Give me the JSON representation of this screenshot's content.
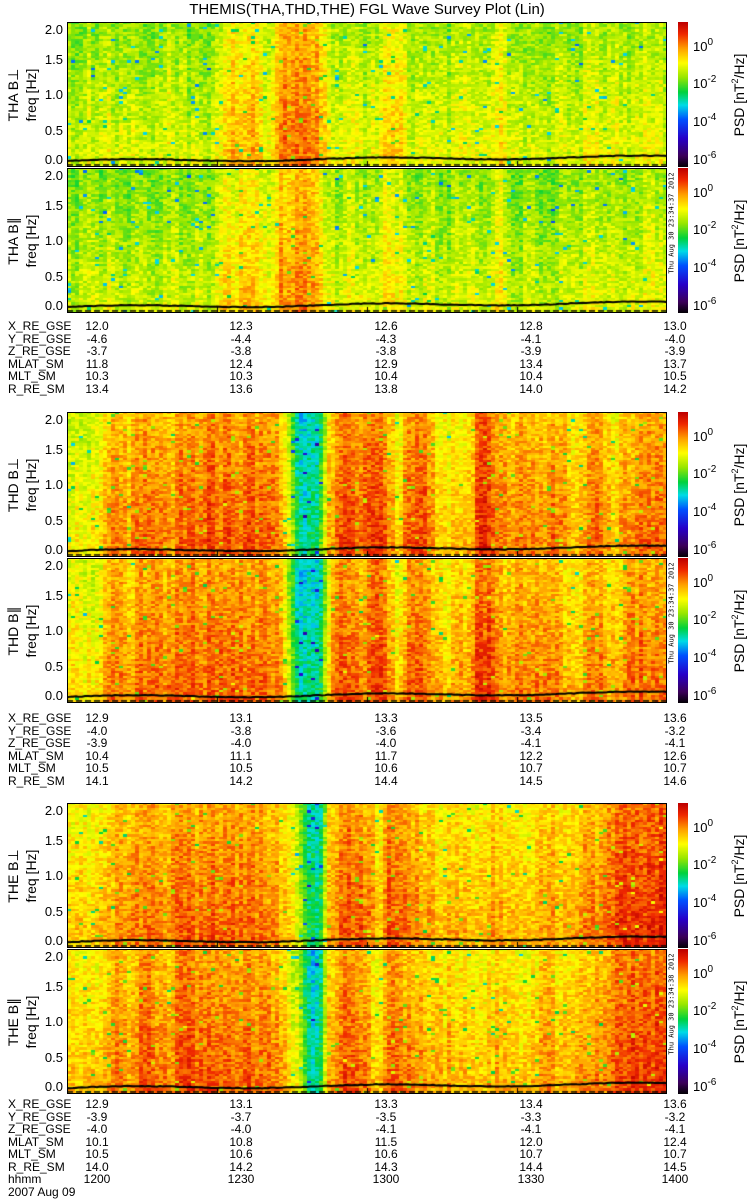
{
  "title": "THEMIS(THA,THD,THE) FGL Wave Survey Plot (Lin)",
  "date": "2007 Aug 09",
  "colors": {
    "line": "#000000",
    "background": "#ffffff"
  },
  "colorbar": {
    "label_prefix": "PSD [nT",
    "label_sup": "2",
    "label_suffix": "/Hz]",
    "ticks": [
      {
        "base": "10",
        "exp": "0",
        "value": 0
      },
      {
        "base": "10",
        "exp": "-2",
        "value": -2
      },
      {
        "base": "10",
        "exp": "-4",
        "value": -4
      },
      {
        "base": "10",
        "exp": "-6",
        "value": -6
      }
    ],
    "range_log10": [
      -6.5,
      1.2
    ]
  },
  "freq_ticks": [
    "0.0",
    "0.5",
    "1.0",
    "1.5",
    "2.0"
  ],
  "freq_label": "freq [Hz]",
  "stamps": [
    "Thu Aug 30 23:34:37 2012",
    "Thu Aug 30 23:34:37 2012",
    "Thu Aug 30 23:34:38 2012"
  ],
  "chart_data": [
    {
      "type": "heatmap",
      "probe": "THA",
      "component": "THA B⊥",
      "xlabel": "hhmm",
      "ylabel": "freq [Hz]",
      "xlim": [
        "1200",
        "1400"
      ],
      "ylim": [
        0,
        2.05
      ],
      "zlabel": "PSD [nT^2/Hz]",
      "time_profile_log10_psd": [
        -1.2,
        -1.3,
        -1.1,
        -1.2,
        -1.0,
        -1.3,
        -1.2,
        -1.1,
        -1.3,
        -1.2,
        -1.0,
        -1.2,
        -1.3,
        -1.1,
        -1.2,
        -0.9,
        -0.3,
        -0.4,
        -0.2,
        -0.5,
        -0.9,
        0.1,
        0.2,
        0.3,
        0.1,
        0.0,
        -1.0,
        -1.1,
        -0.9,
        -1.0,
        -1.1,
        -0.9,
        -0.4,
        -0.5,
        -1.1,
        -1.2,
        -1.0,
        -1.1,
        -1.2,
        -1.0,
        -1.1,
        -1.2,
        -1.0,
        -0.5,
        -1.2,
        -1.3,
        -1.1,
        -1.2,
        -1.3,
        -1.1,
        -1.2,
        -1.2,
        -0.7,
        -1.0,
        -1.1,
        -1.0,
        -1.1,
        -1.0,
        -0.9,
        -1.0
      ]
    },
    {
      "type": "heatmap",
      "probe": "THA",
      "component": "THA B∥",
      "xlabel": "hhmm",
      "ylabel": "freq [Hz]",
      "xlim": [
        "1200",
        "1400"
      ],
      "ylim": [
        0,
        2.05
      ],
      "time_profile_log10_psd": [
        -1.3,
        -1.4,
        -1.2,
        -1.3,
        -1.1,
        -1.4,
        -1.3,
        -1.2,
        -1.4,
        -1.3,
        -1.1,
        -1.3,
        -1.4,
        -1.2,
        -1.3,
        -1.0,
        -0.5,
        -0.6,
        -0.4,
        -0.7,
        -1.0,
        -0.1,
        0.0,
        0.1,
        -0.1,
        -0.2,
        -1.1,
        -1.2,
        -1.0,
        -1.1,
        -1.2,
        -1.0,
        -0.6,
        -0.7,
        -1.2,
        -1.3,
        -1.1,
        -1.2,
        -1.3,
        -1.1,
        -1.2,
        -1.3,
        -1.1,
        -0.7,
        -1.3,
        -1.4,
        -1.2,
        -1.3,
        -1.4,
        -1.2,
        -1.3,
        -1.3,
        -0.9,
        -1.1,
        -1.2,
        -1.1,
        -1.2,
        -1.1,
        -1.0,
        -1.1
      ]
    },
    {
      "type": "heatmap",
      "probe": "THD",
      "component": "THD B⊥",
      "xlabel": "hhmm",
      "ylabel": "freq [Hz]",
      "xlim": [
        "1200",
        "1400"
      ],
      "ylim": [
        0,
        2.05
      ],
      "time_profile_log10_psd": [
        -0.8,
        -0.7,
        -0.9,
        -0.6,
        0.0,
        0.1,
        -0.2,
        0.2,
        0.3,
        0.1,
        0.0,
        0.3,
        0.4,
        0.2,
        0.5,
        0.3,
        0.4,
        0.2,
        0.5,
        0.3,
        0.2,
        0.0,
        -1.0,
        -2.6,
        -2.7,
        -2.6,
        -0.3,
        0.5,
        0.6,
        0.3,
        0.4,
        0.7,
        0.2,
        -0.6,
        0.5,
        0.4,
        0.3,
        -0.4,
        -0.5,
        -0.3,
        -0.4,
        0.8,
        0.7,
        0.1,
        0.0,
        0.2,
        0.3,
        0.0,
        0.1,
        0.2,
        -0.2,
        -0.3,
        0.2,
        0.3,
        -0.2,
        -0.3,
        0.1,
        0.4,
        0.3,
        0.2
      ]
    },
    {
      "type": "heatmap",
      "probe": "THD",
      "component": "THD B∥",
      "xlabel": "hhmm",
      "ylabel": "freq [Hz]",
      "xlim": [
        "1200",
        "1400"
      ],
      "ylim": [
        0,
        2.05
      ],
      "time_profile_log10_psd": [
        -0.7,
        -0.6,
        -0.8,
        -0.5,
        0.0,
        0.1,
        -0.1,
        0.2,
        0.3,
        0.1,
        0.1,
        0.3,
        0.4,
        0.2,
        0.4,
        0.3,
        0.4,
        0.2,
        0.4,
        0.3,
        0.2,
        0.0,
        -1.1,
        -2.7,
        -2.8,
        -2.7,
        -0.4,
        0.4,
        0.5,
        0.2,
        0.3,
        0.6,
        0.1,
        -0.7,
        0.4,
        0.3,
        0.2,
        -0.3,
        -0.4,
        -0.2,
        -0.3,
        0.7,
        0.6,
        0.1,
        0.0,
        0.1,
        0.2,
        0.0,
        0.1,
        0.1,
        -0.2,
        -0.3,
        0.1,
        0.2,
        -0.2,
        -0.3,
        0.1,
        0.3,
        0.2,
        0.1
      ]
    },
    {
      "type": "heatmap",
      "probe": "THE",
      "component": "THE B⊥",
      "xlabel": "hhmm",
      "ylabel": "freq [Hz]",
      "xlim": [
        "1200",
        "1400"
      ],
      "ylim": [
        0,
        2.05
      ],
      "time_profile_log10_psd": [
        -0.6,
        -0.5,
        -0.7,
        -0.4,
        -0.1,
        0.0,
        -0.2,
        0.2,
        0.3,
        0.1,
        0.0,
        0.3,
        0.4,
        0.2,
        0.4,
        0.3,
        0.2,
        0.3,
        0.4,
        0.2,
        0.1,
        0.0,
        -0.5,
        -1.0,
        -2.5,
        -2.6,
        -0.2,
        0.4,
        0.5,
        0.3,
        0.2,
        -0.5,
        0.6,
        0.3,
        0.2,
        0.1,
        -0.2,
        -0.3,
        -0.1,
        -0.2,
        -0.4,
        -0.3,
        -0.2,
        -0.1,
        -0.3,
        -0.2,
        -0.4,
        -0.1,
        0.0,
        -0.2,
        -0.1,
        0.0,
        0.2,
        0.1,
        0.3,
        0.6,
        0.7,
        0.8,
        0.7,
        0.8
      ]
    },
    {
      "type": "heatmap",
      "probe": "THE",
      "component": "THE B∥",
      "xlabel": "hhmm",
      "ylabel": "freq [Hz]",
      "xlim": [
        "1200",
        "1400"
      ],
      "ylim": [
        0,
        2.05
      ],
      "time_profile_log10_psd": [
        -0.5,
        -0.4,
        -0.6,
        -0.3,
        0.0,
        0.1,
        -0.1,
        0.3,
        0.4,
        0.2,
        0.1,
        0.4,
        0.5,
        0.3,
        0.4,
        0.3,
        0.2,
        0.3,
        0.4,
        0.2,
        0.1,
        0.0,
        -0.6,
        -1.1,
        -2.6,
        -2.7,
        -0.3,
        0.3,
        0.4,
        0.2,
        0.1,
        -0.6,
        0.5,
        0.2,
        0.1,
        0.0,
        -0.3,
        -0.4,
        -0.2,
        -0.3,
        -0.5,
        -0.4,
        -0.3,
        -0.2,
        -0.4,
        -0.3,
        -0.5,
        -0.2,
        -0.1,
        -0.3,
        -0.2,
        -0.1,
        0.1,
        0.0,
        0.2,
        0.5,
        0.6,
        0.7,
        0.6,
        0.7
      ]
    }
  ],
  "ephemeris": [
    {
      "rows": [
        {
          "label": "X_RE_GSE",
          "values": [
            "12.0",
            "12.3",
            "12.6",
            "12.8",
            "13.0"
          ]
        },
        {
          "label": "Y_RE_GSE",
          "values": [
            "-4.6",
            "-4.4",
            "-4.3",
            "-4.1",
            "-4.0"
          ]
        },
        {
          "label": "Z_RE_GSE",
          "values": [
            "-3.7",
            "-3.8",
            "-3.8",
            "-3.9",
            "-3.9"
          ]
        },
        {
          "label": "MLAT_SM",
          "values": [
            "11.8",
            "12.4",
            "12.9",
            "13.4",
            "13.7"
          ]
        },
        {
          "label": "MLT_SM",
          "values": [
            "10.3",
            "10.3",
            "10.4",
            "10.4",
            "10.5"
          ]
        },
        {
          "label": "R_RE_SM",
          "values": [
            "13.4",
            "13.6",
            "13.8",
            "14.0",
            "14.2"
          ]
        }
      ]
    },
    {
      "rows": [
        {
          "label": "X_RE_GSE",
          "values": [
            "12.9",
            "13.1",
            "13.3",
            "13.5",
            "13.6"
          ]
        },
        {
          "label": "Y_RE_GSE",
          "values": [
            "-4.0",
            "-3.8",
            "-3.6",
            "-3.4",
            "-3.2"
          ]
        },
        {
          "label": "Z_RE_GSE",
          "values": [
            "-3.9",
            "-4.0",
            "-4.0",
            "-4.1",
            "-4.1"
          ]
        },
        {
          "label": "MLAT_SM",
          "values": [
            "10.4",
            "11.1",
            "11.7",
            "12.2",
            "12.6"
          ]
        },
        {
          "label": "MLT_SM",
          "values": [
            "10.5",
            "10.5",
            "10.6",
            "10.7",
            "10.7"
          ]
        },
        {
          "label": "R_RE_SM",
          "values": [
            "14.1",
            "14.2",
            "14.4",
            "14.5",
            "14.6"
          ]
        }
      ]
    },
    {
      "rows": [
        {
          "label": "X_RE_GSE",
          "values": [
            "12.9",
            "13.1",
            "13.3",
            "13.4",
            "13.6"
          ]
        },
        {
          "label": "Y_RE_GSE",
          "values": [
            "-3.9",
            "-3.7",
            "-3.5",
            "-3.3",
            "-3.2"
          ]
        },
        {
          "label": "Z_RE_GSE",
          "values": [
            "-4.0",
            "-4.0",
            "-4.1",
            "-4.1",
            "-4.1"
          ]
        },
        {
          "label": "MLAT_SM",
          "values": [
            "10.1",
            "10.8",
            "11.5",
            "12.0",
            "12.4"
          ]
        },
        {
          "label": "MLT_SM",
          "values": [
            "10.5",
            "10.6",
            "10.6",
            "10.7",
            "10.7"
          ]
        },
        {
          "label": "R_RE_SM",
          "values": [
            "14.0",
            "14.2",
            "14.3",
            "14.4",
            "14.5"
          ]
        },
        {
          "label": "hhmm",
          "values": [
            "1200",
            "1230",
            "1300",
            "1330",
            "1400"
          ]
        }
      ]
    }
  ]
}
